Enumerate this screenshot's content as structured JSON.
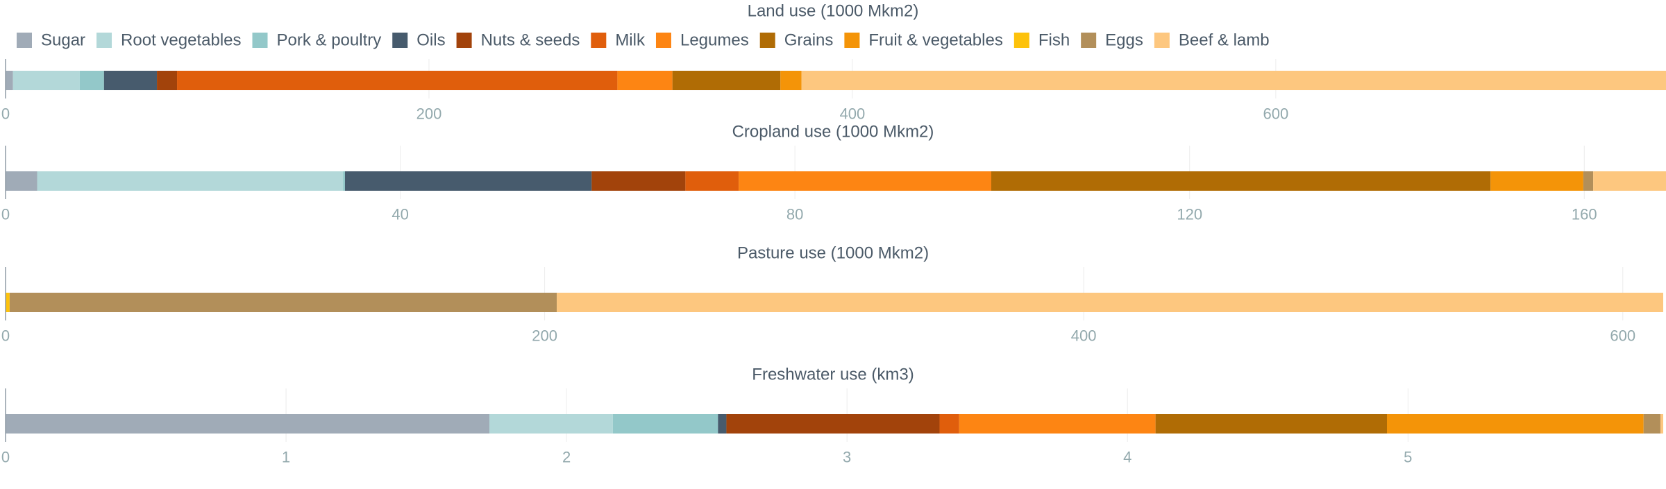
{
  "legend": [
    {
      "name": "Sugar",
      "color": "#a0abb7"
    },
    {
      "name": "Root vegetables",
      "color": "#b3d8d9"
    },
    {
      "name": "Pork & poultry",
      "color": "#93c8c9"
    },
    {
      "name": "Oils",
      "color": "#475b6d"
    },
    {
      "name": "Nuts & seeds",
      "color": "#a2430b"
    },
    {
      "name": "Milk",
      "color": "#e05e0c"
    },
    {
      "name": "Legumes",
      "color": "#fd8513"
    },
    {
      "name": "Grains",
      "color": "#b06c05"
    },
    {
      "name": "Fruit & vegetables",
      "color": "#f49408"
    },
    {
      "name": "Fish",
      "color": "#fdc20b"
    },
    {
      "name": "Eggs",
      "color": "#b28f5a"
    },
    {
      "name": "Beef & lamb",
      "color": "#fdc77f"
    }
  ],
  "chart_data": [
    {
      "type": "bar",
      "orientation": "horizontal-stacked",
      "title": "Land use (1000 Mkm2)",
      "xlim": [
        0,
        783
      ],
      "ticks": [
        0,
        200,
        400,
        600
      ],
      "segments": [
        {
          "name": "Sugar",
          "value": 3.5
        },
        {
          "name": "Root vegetables",
          "value": 31.5
        },
        {
          "name": "Pork & poultry",
          "value": 11.5
        },
        {
          "name": "Oils",
          "value": 25
        },
        {
          "name": "Nuts & seeds",
          "value": 9.5
        },
        {
          "name": "Milk",
          "value": 208
        },
        {
          "name": "Legumes",
          "value": 26
        },
        {
          "name": "Grains",
          "value": 51
        },
        {
          "name": "Fruit & vegetables",
          "value": 10
        },
        {
          "name": "Fish",
          "value": 0
        },
        {
          "name": "Eggs",
          "value": 0
        },
        {
          "name": "Beef & lamb",
          "value": 418
        }
      ]
    },
    {
      "type": "bar",
      "orientation": "horizontal-stacked",
      "title": "Cropland use (1000 Mkm2)",
      "xlim": [
        0,
        168
      ],
      "ticks": [
        0,
        40,
        80,
        120,
        160
      ],
      "segments": [
        {
          "name": "Sugar",
          "value": 3.2
        },
        {
          "name": "Root vegetables",
          "value": 31
        },
        {
          "name": "Pork & poultry",
          "value": 0.2
        },
        {
          "name": "Oils",
          "value": 25
        },
        {
          "name": "Nuts & seeds",
          "value": 9.5
        },
        {
          "name": "Milk",
          "value": 5.4
        },
        {
          "name": "Legumes",
          "value": 25.6
        },
        {
          "name": "Grains",
          "value": 50.6
        },
        {
          "name": "Fruit & vegetables",
          "value": 9.4
        },
        {
          "name": "Fish",
          "value": 0
        },
        {
          "name": "Eggs",
          "value": 1
        },
        {
          "name": "Beef & lamb",
          "value": 7.6
        }
      ]
    },
    {
      "type": "bar",
      "orientation": "horizontal-stacked",
      "title": "Pasture use (1000 Mkm2)",
      "xlim": [
        0,
        615
      ],
      "ticks": [
        0,
        200,
        400,
        600
      ],
      "segments": [
        {
          "name": "Sugar",
          "value": 0
        },
        {
          "name": "Root vegetables",
          "value": 0
        },
        {
          "name": "Pork & poultry",
          "value": 0
        },
        {
          "name": "Oils",
          "value": 0
        },
        {
          "name": "Nuts & seeds",
          "value": 0
        },
        {
          "name": "Milk",
          "value": 0
        },
        {
          "name": "Legumes",
          "value": 0
        },
        {
          "name": "Grains",
          "value": 0
        },
        {
          "name": "Fruit & vegetables",
          "value": 0
        },
        {
          "name": "Fish",
          "value": 1.5
        },
        {
          "name": "Eggs",
          "value": 203
        },
        {
          "name": "Beef & lamb",
          "value": 410.5
        }
      ]
    },
    {
      "type": "bar",
      "orientation": "horizontal-stacked",
      "title": "Freshwater use (km3)",
      "xlim": [
        0,
        5.91
      ],
      "ticks": [
        0,
        1,
        2,
        3,
        4,
        5
      ],
      "segments": [
        {
          "name": "Sugar",
          "value": 1.725
        },
        {
          "name": "Root vegetables",
          "value": 0.44
        },
        {
          "name": "Pork & poultry",
          "value": 0.375
        },
        {
          "name": "Oils",
          "value": 0.03
        },
        {
          "name": "Nuts & seeds",
          "value": 0.76
        },
        {
          "name": "Milk",
          "value": 0.07
        },
        {
          "name": "Legumes",
          "value": 0.7
        },
        {
          "name": "Grains",
          "value": 0.825
        },
        {
          "name": "Fruit & vegetables",
          "value": 0.915
        },
        {
          "name": "Fish",
          "value": 0
        },
        {
          "name": "Eggs",
          "value": 0.06
        },
        {
          "name": "Beef & lamb",
          "value": 0.01
        }
      ]
    }
  ]
}
